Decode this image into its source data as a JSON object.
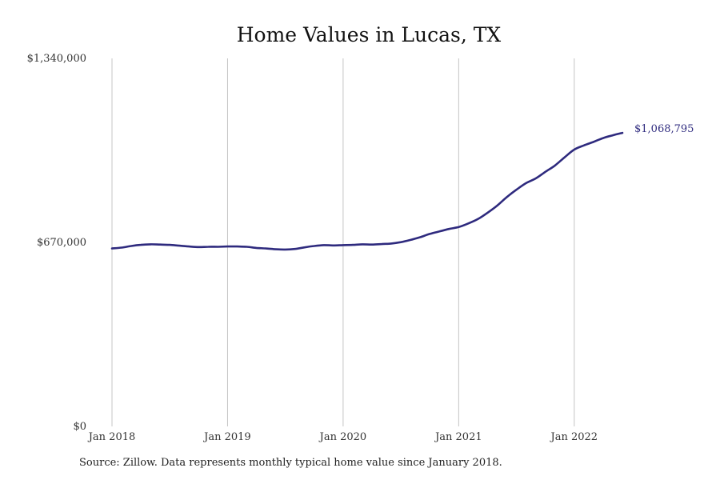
{
  "chart_data": {
    "type": "line",
    "title": "Home Values in Lucas, TX",
    "xlabel": "",
    "ylabel": "",
    "ylim": [
      0,
      1340000
    ],
    "ytick_values": [
      0,
      670000,
      1340000
    ],
    "ytick_labels": [
      "$0",
      "$670,000",
      "$1,340,000"
    ],
    "xtick_values": [
      "2018-01",
      "2019-01",
      "2020-01",
      "2021-01",
      "2022-01"
    ],
    "xtick_labels": [
      "Jan 2018",
      "Jan 2019",
      "Jan 2020",
      "Jan 2021",
      "Jan 2022"
    ],
    "xlim": [
      "2018-01",
      "2022-06"
    ],
    "grid": "vertical",
    "line_color": "#2e2a7e",
    "end_label": "$1,068,795",
    "series": [
      {
        "name": "",
        "x": [
          "2018-01",
          "2018-02",
          "2018-03",
          "2018-04",
          "2018-05",
          "2018-06",
          "2018-07",
          "2018-08",
          "2018-09",
          "2018-10",
          "2018-11",
          "2018-12",
          "2019-01",
          "2019-02",
          "2019-03",
          "2019-04",
          "2019-05",
          "2019-06",
          "2019-07",
          "2019-08",
          "2019-09",
          "2019-10",
          "2019-11",
          "2019-12",
          "2020-01",
          "2020-02",
          "2020-03",
          "2020-04",
          "2020-05",
          "2020-06",
          "2020-07",
          "2020-08",
          "2020-09",
          "2020-10",
          "2020-11",
          "2020-12",
          "2021-01",
          "2021-02",
          "2021-03",
          "2021-04",
          "2021-05",
          "2021-06",
          "2021-07",
          "2021-08",
          "2021-09",
          "2021-10",
          "2021-11",
          "2021-12",
          "2022-01",
          "2022-02",
          "2022-03",
          "2022-04",
          "2022-05",
          "2022-06"
        ],
        "values": [
          648000,
          651000,
          657000,
          661000,
          663000,
          662000,
          661000,
          658000,
          655000,
          653000,
          654000,
          654000,
          655000,
          655000,
          654000,
          650000,
          648000,
          645000,
          644000,
          646000,
          652000,
          657000,
          660000,
          659000,
          660000,
          661000,
          663000,
          662000,
          664000,
          666000,
          671000,
          679000,
          689000,
          701000,
          710000,
          719000,
          726000,
          739000,
          755000,
          778000,
          804000,
          835000,
          862000,
          886000,
          903000,
          927000,
          950000,
          980000,
          1008000,
          1023000,
          1036000,
          1050000,
          1060000,
          1068795
        ]
      }
    ]
  },
  "footer": {
    "source": "Source: Zillow. Data represents monthly typical home value since January 2018."
  }
}
